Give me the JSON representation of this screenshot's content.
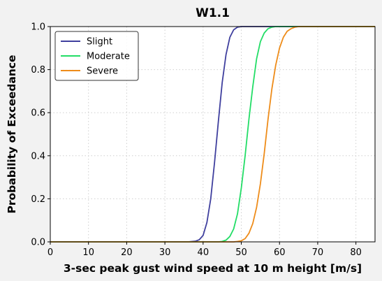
{
  "chart_data": {
    "type": "line",
    "title": "W1.1",
    "xlabel": "3-sec peak gust wind speed at 10 m height [m/s]",
    "ylabel": "Probability of Exceedance",
    "xlim": [
      0,
      85
    ],
    "ylim": [
      0,
      1
    ],
    "xticks": [
      0,
      10,
      20,
      30,
      40,
      50,
      60,
      70,
      80
    ],
    "yticks": [
      0.0,
      0.2,
      0.4,
      0.6,
      0.8,
      1.0
    ],
    "xtick_labels": [
      "0",
      "10",
      "20",
      "30",
      "40",
      "50",
      "60",
      "70",
      "80"
    ],
    "ytick_labels": [
      "0.0",
      "0.2",
      "0.4",
      "0.6",
      "0.8",
      "1.0"
    ],
    "grid": true,
    "legend_location": "top-left",
    "series": [
      {
        "name": "Slight",
        "color": "#3f3f9e",
        "x": [
          0,
          36,
          38,
          39,
          40,
          41,
          42,
          43,
          44,
          45,
          46,
          47,
          48,
          49,
          50,
          52,
          85
        ],
        "y": [
          0,
          0.0,
          0.003,
          0.01,
          0.03,
          0.09,
          0.2,
          0.37,
          0.56,
          0.74,
          0.87,
          0.95,
          0.985,
          0.997,
          1.0,
          1.0,
          1.0
        ]
      },
      {
        "name": "Moderate",
        "color": "#22dd66",
        "x": [
          0,
          44,
          45,
          46,
          47,
          48,
          49,
          50,
          51,
          52,
          53,
          54,
          55,
          56,
          57,
          58,
          59,
          60,
          85
        ],
        "y": [
          0,
          0.0,
          0.002,
          0.008,
          0.025,
          0.06,
          0.13,
          0.25,
          0.4,
          0.57,
          0.72,
          0.85,
          0.93,
          0.97,
          0.99,
          0.997,
          1.0,
          1.0,
          1.0
        ]
      },
      {
        "name": "Severe",
        "color": "#ee8c1a",
        "x": [
          0,
          48,
          49,
          50,
          51,
          52,
          53,
          54,
          55,
          56,
          57,
          58,
          59,
          60,
          61,
          62,
          63,
          64,
          65,
          66,
          85
        ],
        "y": [
          0,
          0.0,
          0.002,
          0.005,
          0.015,
          0.04,
          0.085,
          0.16,
          0.27,
          0.41,
          0.57,
          0.71,
          0.82,
          0.9,
          0.95,
          0.978,
          0.99,
          0.997,
          1.0,
          1.0,
          1.0
        ]
      }
    ]
  }
}
